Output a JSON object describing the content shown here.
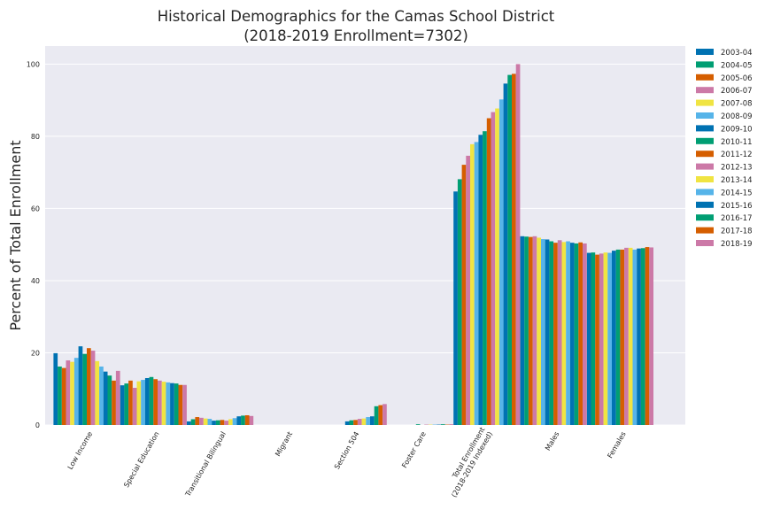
{
  "chart_data": {
    "type": "bar",
    "title_lines": [
      "Historical Demographics for the Camas School District",
      "(2018-2019 Enrollment=7302)"
    ],
    "xlabel": "",
    "ylabel": "Percent of Total Enrollment",
    "ylim": [
      0,
      105
    ],
    "yticks": [
      "0",
      "20",
      "40",
      "60",
      "80",
      "100"
    ],
    "grid": true,
    "legend_position": "outside-right",
    "categories": [
      [
        "Low Income"
      ],
      [
        "Special Education"
      ],
      [
        "Transitional Bilingual"
      ],
      [
        "Migrant"
      ],
      [
        "Section 504"
      ],
      [
        "Foster Care"
      ],
      [
        "Total Enrollment",
        "(2018-2019 Indexed)"
      ],
      [
        "Males"
      ],
      [
        "Females"
      ]
    ],
    "colors": [
      "#0072b2",
      "#009e73",
      "#d55e00",
      "#cc79a7",
      "#f0e442",
      "#56b4e9"
    ],
    "series": [
      {
        "name": "2003-04",
        "values": [
          19.9,
          11.0,
          1.0,
          0,
          0,
          0,
          64.7,
          52.3,
          47.7
        ]
      },
      {
        "name": "2004-05",
        "values": [
          16.2,
          11.5,
          1.6,
          0,
          0,
          0,
          68.1,
          52.2,
          47.8
        ]
      },
      {
        "name": "2005-06",
        "values": [
          15.8,
          12.3,
          2.2,
          0,
          0,
          0,
          72.1,
          52.1,
          47.2
        ]
      },
      {
        "name": "2006-07",
        "values": [
          17.9,
          10.3,
          2.0,
          0,
          0,
          0,
          74.6,
          52.3,
          47.5
        ]
      },
      {
        "name": "2007-08",
        "values": [
          17.5,
          12.1,
          1.8,
          0,
          0,
          0,
          77.8,
          51.9,
          47.8
        ]
      },
      {
        "name": "2008-09",
        "values": [
          18.6,
          12.5,
          1.7,
          0,
          0,
          0,
          78.4,
          51.5,
          47.7
        ]
      },
      {
        "name": "2009-10",
        "values": [
          21.8,
          13.0,
          1.2,
          0,
          1.0,
          0,
          80.4,
          51.4,
          48.3
        ]
      },
      {
        "name": "2010-11",
        "values": [
          19.7,
          13.3,
          1.3,
          0,
          1.3,
          0.2,
          81.4,
          50.9,
          48.6
        ]
      },
      {
        "name": "2011-12",
        "values": [
          21.3,
          12.7,
          1.4,
          0,
          1.4,
          0,
          85.0,
          50.5,
          48.6
        ]
      },
      {
        "name": "2012-13",
        "values": [
          20.6,
          12.3,
          1.2,
          0,
          1.7,
          0.1,
          86.7,
          51.2,
          49.1
        ]
      },
      {
        "name": "2013-14",
        "values": [
          17.7,
          12.0,
          1.6,
          0,
          1.8,
          0.1,
          87.7,
          50.7,
          49.1
        ]
      },
      {
        "name": "2014-15",
        "values": [
          16.2,
          11.8,
          1.9,
          0,
          2.2,
          0.1,
          90.2,
          50.9,
          48.6
        ]
      },
      {
        "name": "2015-16",
        "values": [
          14.8,
          11.6,
          2.4,
          0,
          2.4,
          0.1,
          94.6,
          50.5,
          48.9
        ]
      },
      {
        "name": "2016-17",
        "values": [
          13.7,
          11.5,
          2.6,
          0,
          5.2,
          0.2,
          97.0,
          50.3,
          49.0
        ]
      },
      {
        "name": "2017-18",
        "values": [
          12.3,
          11.1,
          2.7,
          0,
          5.5,
          0.1,
          97.3,
          50.6,
          49.3
        ]
      },
      {
        "name": "2018-19",
        "values": [
          15.0,
          11.1,
          2.5,
          0,
          5.8,
          0.2,
          100.0,
          50.3,
          49.2
        ]
      }
    ]
  }
}
